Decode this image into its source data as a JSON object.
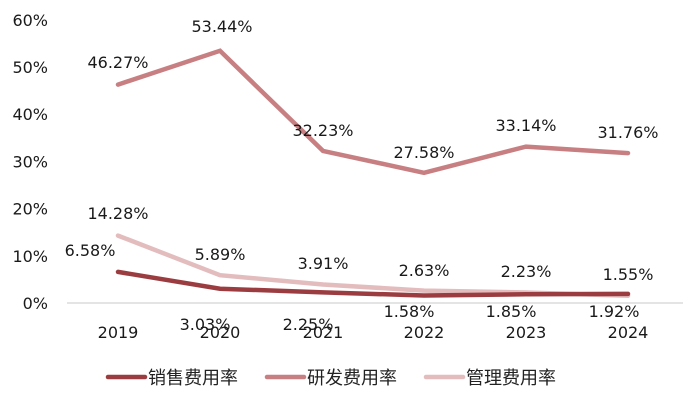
{
  "chart_data": {
    "type": "line",
    "title": "",
    "xlabel": "",
    "ylabel": "",
    "categories": [
      "2019",
      "2020",
      "2021",
      "2022",
      "2023",
      "2024"
    ],
    "ylim": [
      0,
      60
    ],
    "yticks": [
      "0%",
      "10%",
      "20%",
      "30%",
      "40%",
      "50%",
      "60%"
    ],
    "grid": false,
    "legend_position": "bottom",
    "series": [
      {
        "name": "销售费用率",
        "color": "#9b3d40",
        "values": [
          6.58,
          3.03,
          2.25,
          1.58,
          1.85,
          1.92
        ],
        "labels": [
          "6.58%",
          "3.03%",
          "2.25%",
          "1.58%",
          "1.85%",
          "1.92%"
        ]
      },
      {
        "name": "研发费用率",
        "color": "#c77f82",
        "values": [
          46.27,
          53.44,
          32.23,
          27.58,
          33.14,
          31.76
        ],
        "labels": [
          "46.27%",
          "53.44%",
          "32.23%",
          "27.58%",
          "33.14%",
          "31.76%"
        ]
      },
      {
        "name": "管理费用率",
        "color": "#e3bcbe",
        "values": [
          14.28,
          5.89,
          3.91,
          2.63,
          2.23,
          1.55
        ],
        "labels": [
          "14.28%",
          "5.89%",
          "3.91%",
          "2.63%",
          "2.23%",
          "1.55%"
        ]
      }
    ]
  }
}
